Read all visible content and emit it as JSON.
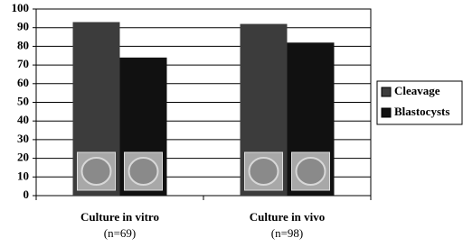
{
  "chart_data": {
    "type": "bar",
    "categories": [
      "Culture in vitro",
      "Culture in vivo"
    ],
    "category_notes": [
      "(n=69)",
      "(n=98)"
    ],
    "series": [
      {
        "name": "Cleavage",
        "color": "#3c3c3c",
        "values": [
          93,
          92
        ]
      },
      {
        "name": "Blastocysts",
        "color": "#111111",
        "values": [
          74,
          82
        ]
      }
    ],
    "ylim": [
      0,
      100
    ],
    "yticks": [
      0,
      10,
      20,
      30,
      40,
      50,
      60,
      70,
      80,
      90,
      100
    ],
    "grid": true,
    "legend": "right"
  }
}
